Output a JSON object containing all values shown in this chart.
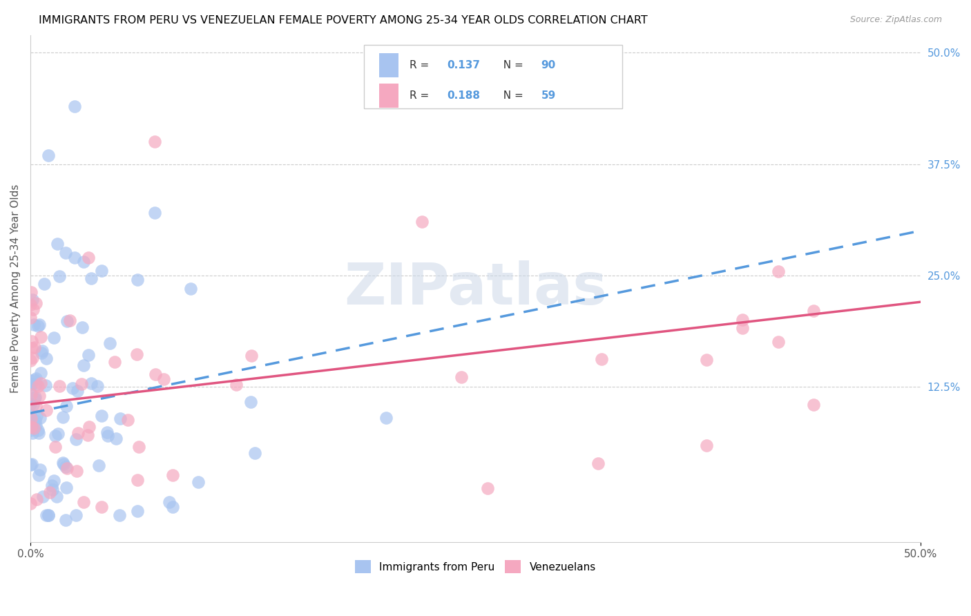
{
  "title": "IMMIGRANTS FROM PERU VS VENEZUELAN FEMALE POVERTY AMONG 25-34 YEAR OLDS CORRELATION CHART",
  "source": "Source: ZipAtlas.com",
  "ylabel": "Female Poverty Among 25-34 Year Olds",
  "xlim": [
    0.0,
    0.5
  ],
  "ylim": [
    -0.05,
    0.52
  ],
  "ytick_right_labels": [
    "50.0%",
    "37.5%",
    "25.0%",
    "12.5%"
  ],
  "ytick_right_values": [
    0.5,
    0.375,
    0.25,
    0.125
  ],
  "peru_color": "#a8c4f0",
  "venezuela_color": "#f5a8c0",
  "peru_line_color": "#5599dd",
  "venezuela_line_color": "#e05580",
  "peru_R": 0.137,
  "peru_N": 90,
  "venezuela_R": 0.188,
  "venezuela_N": 59,
  "watermark": "ZIPatlas",
  "watermark_color": "#ccd8e8",
  "legend_label_peru": "Immigrants from Peru",
  "legend_label_venezuela": "Venezuelans",
  "background_color": "#ffffff",
  "grid_color": "#cccccc",
  "peru_line_start_y": 0.095,
  "peru_line_end_y": 0.3,
  "venezuela_line_start_y": 0.105,
  "venezuela_line_end_y": 0.22
}
